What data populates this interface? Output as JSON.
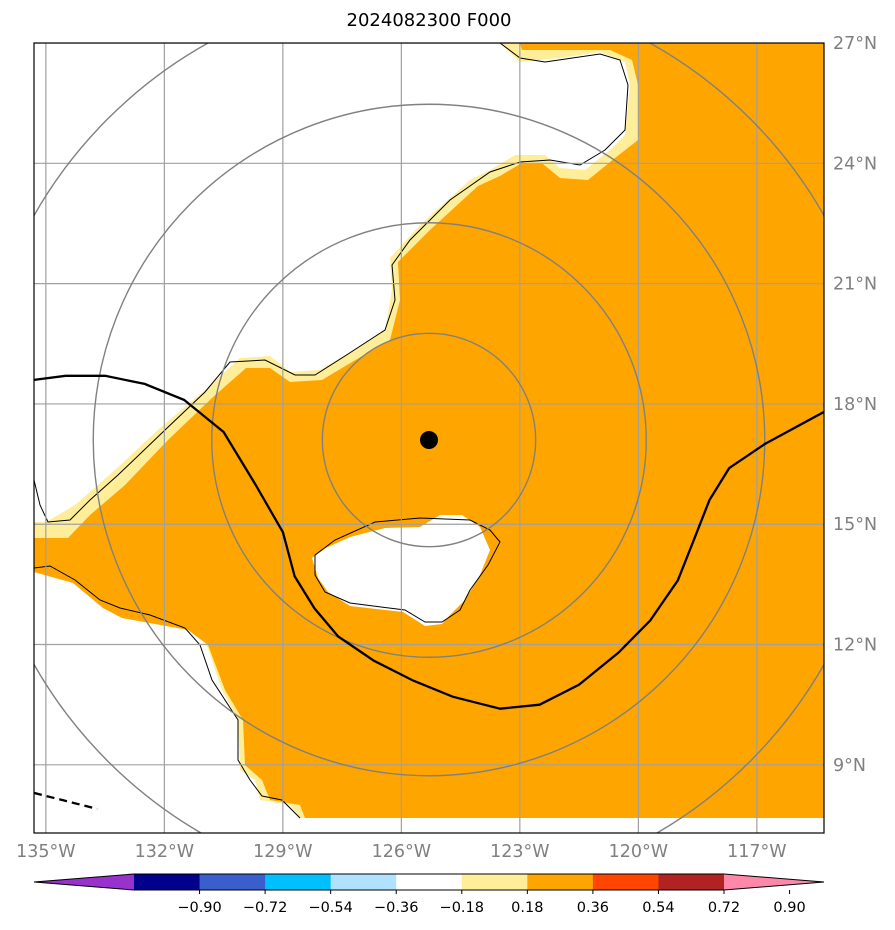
{
  "title": "2024082300 F000",
  "map": {
    "lon_range": [
      -135.3,
      -115.3
    ],
    "lat_range": [
      7.3,
      27.0
    ],
    "storm_center": {
      "lon": -125.3,
      "lat": 17.1
    },
    "range_rings_deg": [
      2.7,
      5.5,
      8.5,
      11.5
    ],
    "fill_colors": {
      "field": "#ffa500",
      "edge": "#ffee99",
      "gap": "#ffffff"
    },
    "ring_color": "#808080",
    "grid_color": "#a0a0a0",
    "lon_ticks": [
      {
        "value": -135,
        "label": "135°W"
      },
      {
        "value": -132,
        "label": "132°W"
      },
      {
        "value": -129,
        "label": "129°W"
      },
      {
        "value": -126,
        "label": "126°W"
      },
      {
        "value": -123,
        "label": "123°W"
      },
      {
        "value": -120,
        "label": "120°W"
      },
      {
        "value": -117,
        "label": "117°W"
      }
    ],
    "lat_ticks": [
      {
        "value": 27,
        "label": "27°N"
      },
      {
        "value": 24,
        "label": "24°N"
      },
      {
        "value": 21,
        "label": "21°N"
      },
      {
        "value": 18,
        "label": "18°N"
      },
      {
        "value": 15,
        "label": "15°N"
      },
      {
        "value": 12,
        "label": "12°N"
      },
      {
        "value": 9,
        "label": "9°N"
      }
    ],
    "contour_solid": [
      [
        -135.3,
        18.6
      ],
      [
        -134.5,
        18.7
      ],
      [
        -133.5,
        18.7
      ],
      [
        -132.5,
        18.5
      ],
      [
        -131.5,
        18.1
      ],
      [
        -130.5,
        17.3
      ],
      [
        -129.7,
        16.0
      ],
      [
        -129.0,
        14.8
      ],
      [
        -128.7,
        13.7
      ],
      [
        -128.2,
        12.9
      ],
      [
        -127.6,
        12.2
      ],
      [
        -126.7,
        11.6
      ],
      [
        -125.7,
        11.1
      ],
      [
        -124.7,
        10.7
      ],
      [
        -123.5,
        10.4
      ],
      [
        -122.5,
        10.5
      ],
      [
        -121.5,
        11.0
      ],
      [
        -120.5,
        11.8
      ],
      [
        -119.7,
        12.6
      ],
      [
        -119.0,
        13.6
      ],
      [
        -118.6,
        14.6
      ],
      [
        -118.2,
        15.6
      ],
      [
        -117.7,
        16.4
      ],
      [
        -116.8,
        17.0
      ],
      [
        -115.3,
        17.8
      ]
    ],
    "contour_dashed": [
      [
        -135.3,
        8.3
      ],
      [
        -134.5,
        8.1
      ],
      [
        -133.7,
        7.9
      ]
    ]
  },
  "colorbar": {
    "colors": [
      "#9932cc",
      "#00008b",
      "#3a5fcd",
      "#00bfff",
      "#b0e2ff",
      "#ffffff",
      "#ffee99",
      "#ffa500",
      "#ff4500",
      "#b22222",
      "#ff88aa"
    ],
    "labels": [
      "−0.90",
      "−0.72",
      "−0.54",
      "−0.36",
      "−0.18",
      "0.18",
      "0.36",
      "0.54",
      "0.72",
      "0.90"
    ]
  }
}
